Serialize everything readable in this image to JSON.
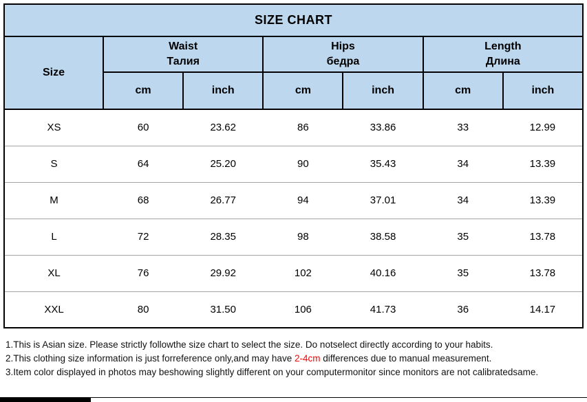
{
  "title": "SIZE CHART",
  "colors": {
    "header_background": "#bdd7ee",
    "border_black": "#000000",
    "row_separator_gray": "#a3a3a3",
    "note_highlight_red": "#ff0000"
  },
  "table": {
    "size_header": "Size",
    "groups": [
      {
        "en": "Waist",
        "ru": "Талия"
      },
      {
        "en": "Hips",
        "ru": "бедра"
      },
      {
        "en": "Length",
        "ru": "Длина"
      }
    ],
    "unit_headers": [
      "cm",
      "inch",
      "cm",
      "inch",
      "cm",
      "inch"
    ],
    "rows": [
      {
        "size": "XS",
        "values": [
          "60",
          "23.62",
          "86",
          "33.86",
          "33",
          "12.99"
        ]
      },
      {
        "size": "S",
        "values": [
          "64",
          "25.20",
          "90",
          "35.43",
          "34",
          "13.39"
        ]
      },
      {
        "size": "M",
        "values": [
          "68",
          "26.77",
          "94",
          "37.01",
          "34",
          "13.39"
        ]
      },
      {
        "size": "L",
        "values": [
          "72",
          "28.35",
          "98",
          "38.58",
          "35",
          "13.78"
        ]
      },
      {
        "size": "XL",
        "values": [
          "76",
          "29.92",
          "102",
          "40.16",
          "35",
          "13.78"
        ]
      },
      {
        "size": "XXL",
        "values": [
          "80",
          "31.50",
          "106",
          "41.73",
          "36",
          "14.17"
        ]
      }
    ]
  },
  "notes": [
    {
      "prefix": "1.This is Asian size. Please strictly followthe size chart to select the size. Do notselect directly according to your habits.",
      "highlight": "",
      "suffix": ""
    },
    {
      "prefix": "2.This clothing size information is just forreference only,and may have ",
      "highlight": "2-4cm",
      "suffix": " differences due to manual measurement."
    },
    {
      "prefix": "3.Item color displayed in photos may beshowing slightly different on your computermonitor since monitors are not calibratedsame.",
      "highlight": "",
      "suffix": ""
    }
  ]
}
